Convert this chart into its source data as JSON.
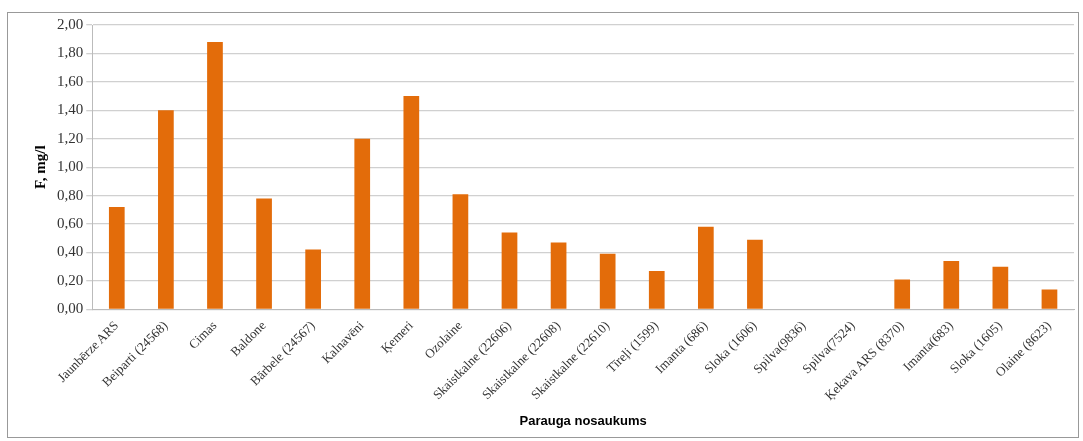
{
  "chart_data": {
    "type": "bar",
    "xlabel": "Parauga nosaukums",
    "ylabel": "F, mg/l",
    "categories": [
      "Jaunbērze ARS",
      "Beiparti (24568)",
      "Cimas",
      "Baldone",
      "Bārbele (24567)",
      "Kalnavēni",
      "Ķemeri",
      "Ozolaine",
      "Skaistkalne (22606)",
      "Skaistkalne (22608)",
      "Skaistkalne (22610)",
      "Tīreļi (1599)",
      "Imanta (686)",
      "Sloka (1606)",
      "Spilva(9836)",
      "Spilva(7524)",
      "Ķekava ARS (8370)",
      "Imanta(683)",
      "Sloka (1605)",
      "Olaine (8623)"
    ],
    "values": [
      0.72,
      1.4,
      1.88,
      0.78,
      0.42,
      1.2,
      1.5,
      0.81,
      0.54,
      0.47,
      0.39,
      0.27,
      0.58,
      0.49,
      null,
      null,
      0.21,
      0.34,
      0.3,
      0.14
    ],
    "color": "#e36c0a",
    "ylim": [
      0,
      2
    ],
    "yticks": [
      {
        "value": 0,
        "label": "0,00"
      },
      {
        "value": 0.2,
        "label": "0,20"
      },
      {
        "value": 0.4,
        "label": "0,40"
      },
      {
        "value": 0.6,
        "label": "0,60"
      },
      {
        "value": 0.8,
        "label": "0,80"
      },
      {
        "value": 1,
        "label": "1,00"
      },
      {
        "value": 1.2,
        "label": "1,20"
      },
      {
        "value": 1.4,
        "label": "1,40"
      },
      {
        "value": 1.6,
        "label": "1,60"
      },
      {
        "value": 1.8,
        "label": "1,80"
      },
      {
        "value": 2,
        "label": "2,00"
      }
    ],
    "grid": "y",
    "legend": false
  }
}
